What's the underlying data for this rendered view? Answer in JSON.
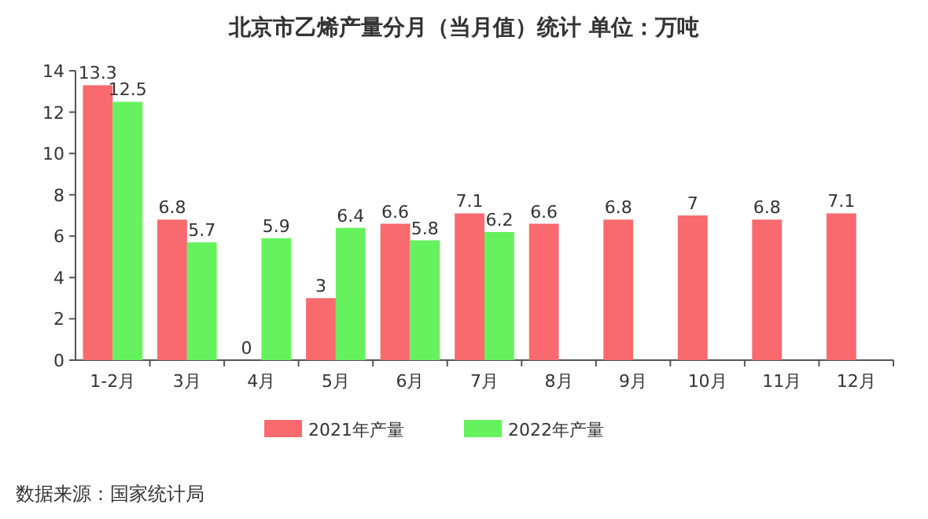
{
  "chart_data": {
    "type": "bar",
    "title": "北京市乙烯产量分月（当月值）统计 单位：万吨",
    "categories": [
      "1-2月",
      "3月",
      "4月",
      "5月",
      "6月",
      "7月",
      "8月",
      "9月",
      "10月",
      "11月",
      "12月"
    ],
    "series": [
      {
        "name": "2021年产量",
        "color": "#f86a6e",
        "values": [
          13.3,
          6.8,
          0,
          3,
          6.6,
          7.1,
          6.6,
          6.8,
          7,
          6.8,
          7.1
        ]
      },
      {
        "name": "2022年产量",
        "color": "#66f25e",
        "values": [
          12.5,
          5.7,
          5.9,
          6.4,
          5.8,
          6.2,
          null,
          null,
          null,
          null,
          null
        ]
      }
    ],
    "ylim": [
      0,
      14
    ],
    "yticks": [
      0,
      2,
      4,
      6,
      8,
      10,
      12,
      14
    ],
    "data_labels": true,
    "legend": "bottom",
    "annotations": [
      "数据来源：国家统计局"
    ]
  }
}
